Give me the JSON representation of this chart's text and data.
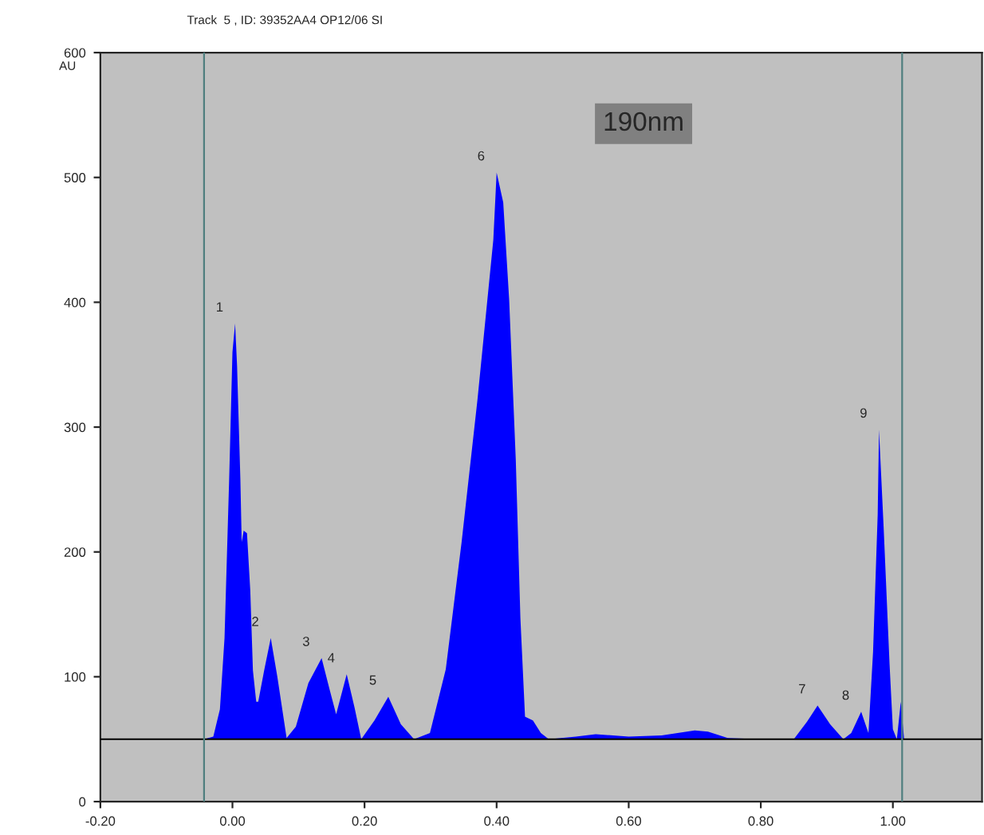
{
  "chart_data": {
    "type": "area",
    "title": "Track  5 , ID: 39352AA4 OP12/06 SI",
    "ylabel": "AU",
    "x": [
      -0.043,
      -0.029,
      -0.019,
      -0.012,
      -0.005,
      0.0,
      0.004,
      0.007,
      0.012,
      0.014,
      0.017,
      0.022,
      0.027,
      0.031,
      0.036,
      0.039,
      0.048,
      0.058,
      0.068,
      0.082,
      0.096,
      0.115,
      0.135,
      0.147,
      0.157,
      0.173,
      0.185,
      0.195,
      0.215,
      0.236,
      0.255,
      0.275,
      0.299,
      0.323,
      0.347,
      0.371,
      0.383,
      0.395,
      0.4,
      0.41,
      0.419,
      0.429,
      0.436,
      0.443,
      0.455,
      0.467,
      0.479,
      0.52,
      0.55,
      0.6,
      0.65,
      0.7,
      0.72,
      0.75,
      0.8,
      0.85,
      0.87,
      0.886,
      0.905,
      0.925,
      0.937,
      0.952,
      0.963,
      0.97,
      0.977,
      0.979,
      0.986,
      0.995,
      1.0,
      1.006,
      1.012,
      1.017
    ],
    "series": [
      {
        "color": "#0000ff",
        "values": [
          50,
          52,
          74,
          131,
          258,
          360,
          383,
          349,
          258,
          208,
          217,
          215,
          169,
          105,
          80,
          80,
          105,
          131,
          100,
          51,
          60,
          95,
          115,
          90,
          70,
          102,
          75,
          50,
          65,
          84,
          62,
          50,
          55,
          106,
          208,
          322,
          386,
          450,
          504,
          480,
          402,
          274,
          147,
          68,
          65,
          55,
          50,
          52,
          54,
          52,
          53,
          57,
          56,
          51,
          50,
          50,
          64,
          77,
          62,
          50,
          55,
          72,
          55,
          120,
          230,
          298,
          220,
          110,
          58,
          50,
          80,
          50
        ]
      }
    ],
    "xlim": [
      -0.2,
      1.135
    ],
    "ylim": [
      0,
      600
    ],
    "xticks": [
      {
        "value": -0.2,
        "label": "-0.20"
      },
      {
        "value": 0,
        "label": "0.00"
      },
      {
        "value": 0.2,
        "label": "0.20"
      },
      {
        "value": 0.4,
        "label": "0.40"
      },
      {
        "value": 0.6,
        "label": "0.60"
      },
      {
        "value": 0.8,
        "label": "0.80"
      },
      {
        "value": 1.0,
        "label": "1.00"
      }
    ],
    "yticks": [
      0,
      100,
      200,
      300,
      400,
      500,
      600
    ],
    "ref_lines": [
      {
        "axis": "y",
        "value": 50,
        "color": "#000000"
      },
      {
        "axis": "x",
        "value": -0.043,
        "color": "#4f7f7f"
      },
      {
        "axis": "x",
        "value": 1.014,
        "color": "#4f7f7f"
      }
    ],
    "annotations": [
      {
        "text": "1",
        "x": 0.004,
        "y": 383
      },
      {
        "text": "2",
        "x": 0.058,
        "y": 131
      },
      {
        "text": "3",
        "x": 0.135,
        "y": 115
      },
      {
        "text": "4",
        "x": 0.173,
        "y": 102
      },
      {
        "text": "5",
        "x": 0.236,
        "y": 84
      },
      {
        "text": "6",
        "x": 0.4,
        "y": 504
      },
      {
        "text": "7",
        "x": 0.886,
        "y": 77
      },
      {
        "text": "8",
        "x": 0.952,
        "y": 72
      },
      {
        "text": "9",
        "x": 0.979,
        "y": 298
      },
      "190nm"
    ],
    "grid": false,
    "legend": false
  }
}
